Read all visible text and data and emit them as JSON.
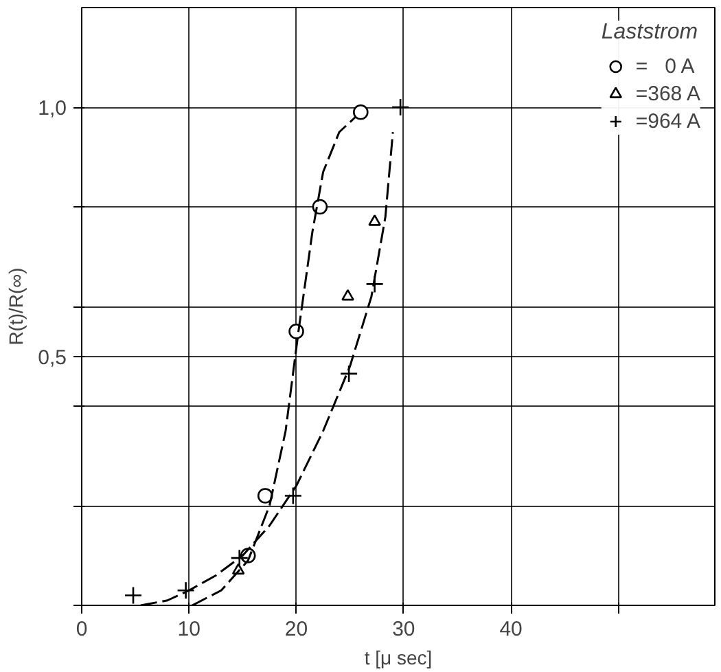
{
  "chart_data": {
    "type": "scatter",
    "xlabel": "t [μ sec]",
    "ylabel": "R(t)/R(∞)",
    "legend_title": "Laststrom",
    "legend": "top right",
    "grid": true,
    "xlim": [
      0,
      59
    ],
    "ylim": [
      0,
      1.2
    ],
    "xticks": [
      {
        "value": 0,
        "label": "0"
      },
      10,
      20,
      30,
      40,
      {
        "value": 50,
        "label": null
      }
    ],
    "yticks": [
      {
        "value": 0,
        "label": null
      },
      {
        "value": 0.2,
        "label": null
      },
      {
        "value": 0.4,
        "label": null
      },
      {
        "value": 0.5,
        "label": "0,5"
      },
      {
        "value": 0.6,
        "label": null
      },
      {
        "value": 0.8,
        "label": null
      },
      {
        "value": 1.0,
        "label": "1,0"
      }
    ],
    "series": [
      {
        "name": "=   0 A",
        "color": "#000000",
        "marker": "circle",
        "x": [
          15.5,
          17.1,
          20,
          22.2,
          26
        ],
        "values": [
          0.1,
          0.22,
          0.55,
          0.8,
          0.99
        ]
      },
      {
        "name": "=368 A",
        "color": "#000000",
        "marker": "triangle",
        "x": [
          14.6,
          24.8,
          27.3
        ],
        "values": [
          0.07,
          0.62,
          0.77
        ]
      },
      {
        "name": "=964 A",
        "color": "#000000",
        "marker": "cross",
        "x": [
          4.8,
          9.7,
          14.7,
          19.7,
          24.9,
          27.3,
          29.7
        ],
        "values": [
          0.02,
          0.03,
          0.095,
          0.22,
          0.465,
          0.645,
          1.0
        ]
      },
      {
        "type": "line",
        "color": "#000000",
        "marker": "none",
        "line_style": "dashed",
        "x": [
          10.3,
          13,
          15.5,
          17.5,
          19,
          20.2,
          21.5,
          22.5,
          24,
          25.5
        ],
        "values": [
          0,
          0.03,
          0.09,
          0.2,
          0.35,
          0.55,
          0.75,
          0.87,
          0.95,
          0.98
        ]
      },
      {
        "type": "line",
        "color": "#000000",
        "marker": "none",
        "line_style": "dashed",
        "x": [
          5.5,
          8,
          10,
          12.5,
          15,
          17.5,
          20,
          22.5,
          25,
          27,
          28.3,
          29
        ],
        "values": [
          0,
          0.01,
          0.03,
          0.06,
          0.1,
          0.16,
          0.24,
          0.35,
          0.48,
          0.62,
          0.78,
          0.95
        ]
      }
    ]
  }
}
